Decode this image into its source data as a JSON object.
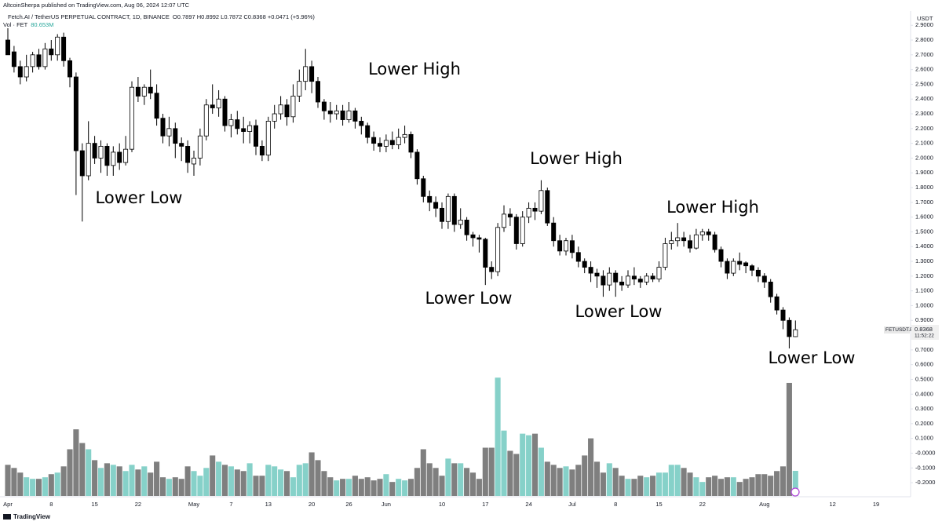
{
  "chart_data": {
    "type": "candlestick",
    "publisher_note": "AltcoinSherpa published on TradingView.com, Aug 06, 2024 12:07 UTC",
    "title": "Fetch.AI / TetherUS PERPETUAL CONTRACT, 1D, BINANCE",
    "ohlc_text": "O0.7897 H0.8992 L0.7872 C0.8368 +0.0471 (+5.96%)",
    "currency": "USDT",
    "symbol_tag": "FETUSDT.P",
    "countdown": "11:52:22",
    "footer_text": "TradingView",
    "annotations": [
      "Lower Low",
      "Lower High",
      "Lower Low",
      "Lower High",
      "Lower Low",
      "Lower High",
      "Lower Low"
    ],
    "categories": [
      "Apr",
      null,
      null,
      null,
      null,
      null,
      null,
      "8",
      null,
      null,
      null,
      null,
      null,
      null,
      "15",
      null,
      null,
      null,
      null,
      null,
      null,
      "22",
      null,
      null,
      null,
      null,
      null,
      null,
      null,
      null,
      "May",
      null,
      null,
      null,
      null,
      null,
      "7",
      null,
      null,
      null,
      null,
      null,
      "13",
      null,
      null,
      null,
      null,
      null,
      null,
      "20",
      null,
      null,
      null,
      null,
      null,
      "26",
      null,
      null,
      null,
      null,
      null,
      "Jun",
      null,
      null,
      null,
      null,
      null,
      null,
      null,
      null,
      "10",
      null,
      null,
      null,
      null,
      null,
      null,
      "17",
      null,
      null,
      null,
      null,
      null,
      null,
      "24",
      null,
      null,
      null,
      null,
      null,
      null,
      "Jul",
      null,
      null,
      null,
      null,
      null,
      null,
      "8",
      null,
      null,
      null,
      null,
      null,
      null,
      "15",
      null,
      null,
      null,
      null,
      null,
      null,
      "22",
      null,
      null,
      null,
      null,
      null,
      null,
      null,
      null,
      null,
      "Aug",
      null,
      null,
      null,
      null,
      null,
      null,
      null,
      null,
      null,
      null,
      "12",
      null,
      null,
      null,
      null,
      null,
      null,
      "19",
      null,
      null,
      null,
      null,
      null
    ],
    "open": [
      2.8,
      2.72,
      2.62,
      2.55,
      2.62,
      2.7,
      2.62,
      2.74,
      2.7,
      2.82,
      2.66,
      2.55,
      2.05,
      1.88,
      2.1,
      2.0,
      2.08,
      1.95,
      2.04,
      1.97,
      2.06,
      2.48,
      2.42,
      2.48,
      2.44,
      2.27,
      2.15,
      2.2,
      2.1,
      2.08,
      1.96,
      2.0,
      2.15,
      2.36,
      2.34,
      2.4,
      2.22,
      2.26,
      2.2,
      2.18,
      2.22,
      2.08,
      2.02,
      2.25,
      2.3,
      2.36,
      2.28,
      2.42,
      2.52,
      2.62,
      2.52,
      2.38,
      2.32,
      2.3,
      2.32,
      2.26,
      2.32,
      2.25,
      2.22,
      2.14,
      2.1,
      2.08,
      2.12,
      2.09,
      2.14,
      2.16,
      2.04,
      1.86,
      1.74,
      1.7,
      1.66,
      1.57,
      1.74,
      1.55,
      1.58,
      1.48,
      1.46,
      1.45,
      1.26,
      1.23,
      1.53,
      1.62,
      1.6,
      1.42,
      1.6,
      1.66,
      1.64,
      1.78,
      1.56,
      1.44,
      1.37,
      1.44,
      1.36,
      1.3,
      1.26,
      1.22,
      1.2,
      1.14,
      1.22,
      1.16,
      1.14,
      1.2,
      1.18,
      1.16,
      1.2,
      1.18,
      1.26,
      1.42,
      1.44,
      1.46,
      1.44,
      1.39,
      1.48,
      1.5,
      1.48,
      1.38,
      1.3,
      1.22,
      1.3,
      1.29,
      1.27,
      1.24,
      1.2,
      1.16,
      1.06,
      0.97,
      0.9,
      0.7897,
      null,
      null,
      null,
      null,
      null,
      null,
      null,
      null,
      null,
      null,
      null,
      null,
      null,
      null,
      null,
      null,
      null,
      null
    ],
    "high": [
      2.88,
      2.76,
      2.66,
      2.7,
      2.72,
      2.74,
      2.78,
      2.8,
      2.84,
      2.85,
      2.68,
      2.58,
      2.1,
      2.25,
      2.15,
      2.12,
      2.1,
      2.08,
      2.1,
      2.15,
      2.52,
      2.55,
      2.5,
      2.6,
      2.5,
      2.3,
      2.28,
      2.24,
      2.14,
      2.12,
      2.05,
      2.2,
      2.4,
      2.5,
      2.46,
      2.42,
      2.3,
      2.32,
      2.28,
      2.25,
      2.26,
      2.12,
      2.28,
      2.36,
      2.42,
      2.4,
      2.5,
      2.6,
      2.74,
      2.66,
      2.55,
      2.4,
      2.38,
      2.36,
      2.36,
      2.38,
      2.34,
      2.28,
      2.24,
      2.18,
      2.14,
      2.16,
      2.18,
      2.2,
      2.22,
      2.18,
      2.06,
      1.88,
      1.78,
      1.74,
      1.7,
      1.76,
      1.76,
      1.66,
      1.6,
      1.5,
      1.48,
      1.46,
      1.3,
      1.56,
      1.68,
      1.66,
      1.62,
      1.64,
      1.7,
      1.7,
      1.85,
      1.8,
      1.6,
      1.48,
      1.46,
      1.48,
      1.4,
      1.32,
      1.3,
      1.25,
      1.24,
      1.26,
      1.24,
      1.2,
      1.24,
      1.26,
      1.2,
      1.22,
      1.22,
      1.3,
      1.46,
      1.5,
      1.56,
      1.5,
      1.48,
      1.52,
      1.52,
      1.52,
      1.5,
      1.4,
      1.32,
      1.32,
      1.36,
      1.3,
      1.28,
      1.26,
      1.22,
      1.18,
      1.08,
      0.99,
      0.92,
      0.8992,
      null,
      null,
      null,
      null,
      null,
      null,
      null,
      null,
      null,
      null,
      null,
      null,
      null,
      null,
      null,
      null,
      null,
      null
    ],
    "low": [
      2.7,
      2.58,
      2.5,
      2.52,
      2.58,
      2.6,
      2.6,
      2.66,
      2.66,
      2.62,
      2.48,
      1.75,
      1.57,
      1.85,
      1.96,
      1.9,
      1.88,
      1.88,
      1.92,
      1.95,
      2.04,
      2.38,
      2.36,
      2.4,
      2.22,
      2.1,
      2.08,
      2.0,
      1.98,
      1.9,
      1.88,
      1.95,
      2.12,
      2.3,
      2.28,
      2.18,
      2.14,
      2.16,
      2.1,
      2.1,
      2.02,
      1.98,
      1.98,
      2.2,
      2.26,
      2.22,
      2.24,
      2.38,
      2.46,
      2.44,
      2.34,
      2.26,
      2.24,
      2.26,
      2.22,
      2.24,
      2.2,
      2.16,
      2.1,
      2.05,
      2.04,
      2.04,
      2.06,
      2.06,
      2.1,
      2.0,
      1.82,
      1.7,
      1.64,
      1.6,
      1.52,
      1.52,
      1.5,
      1.52,
      1.44,
      1.4,
      1.36,
      1.14,
      1.18,
      1.2,
      1.5,
      1.54,
      1.38,
      1.4,
      1.56,
      1.58,
      1.62,
      1.54,
      1.4,
      1.34,
      1.34,
      1.32,
      1.26,
      1.22,
      1.16,
      1.12,
      1.06,
      1.1,
      1.06,
      1.1,
      1.12,
      1.14,
      1.12,
      1.14,
      1.16,
      1.16,
      1.24,
      1.38,
      1.4,
      1.4,
      1.36,
      1.38,
      1.44,
      1.44,
      1.36,
      1.26,
      1.18,
      1.2,
      1.24,
      1.22,
      1.2,
      1.16,
      1.12,
      1.02,
      0.94,
      0.84,
      0.71,
      0.7872,
      null,
      null,
      null,
      null,
      null,
      null,
      null,
      null,
      null,
      null,
      null,
      null,
      null,
      null,
      null,
      null,
      null,
      null
    ],
    "close": [
      2.7,
      2.62,
      2.55,
      2.62,
      2.7,
      2.62,
      2.74,
      2.7,
      2.82,
      2.66,
      2.55,
      2.05,
      1.88,
      2.1,
      2.0,
      2.08,
      1.95,
      2.04,
      1.97,
      2.06,
      2.48,
      2.42,
      2.48,
      2.44,
      2.27,
      2.15,
      2.2,
      2.1,
      2.08,
      1.97,
      2.0,
      2.15,
      2.36,
      2.34,
      2.4,
      2.22,
      2.26,
      2.2,
      2.18,
      2.22,
      2.08,
      2.02,
      2.25,
      2.3,
      2.36,
      2.28,
      2.42,
      2.52,
      2.62,
      2.52,
      2.38,
      2.32,
      2.3,
      2.32,
      2.26,
      2.32,
      2.25,
      2.22,
      2.14,
      2.1,
      2.08,
      2.12,
      2.09,
      2.14,
      2.16,
      2.04,
      1.86,
      1.74,
      1.7,
      1.66,
      1.57,
      1.74,
      1.55,
      1.58,
      1.48,
      1.46,
      1.45,
      1.26,
      1.23,
      1.53,
      1.62,
      1.6,
      1.42,
      1.6,
      1.66,
      1.64,
      1.78,
      1.56,
      1.44,
      1.37,
      1.44,
      1.36,
      1.3,
      1.26,
      1.22,
      1.2,
      1.14,
      1.22,
      1.16,
      1.14,
      1.2,
      1.18,
      1.16,
      1.2,
      1.18,
      1.26,
      1.42,
      1.44,
      1.46,
      1.44,
      1.39,
      1.48,
      1.5,
      1.48,
      1.38,
      1.3,
      1.22,
      1.3,
      1.28,
      1.27,
      1.24,
      1.2,
      1.16,
      1.06,
      0.97,
      0.9,
      0.79,
      0.8368,
      null,
      null,
      null,
      null,
      null,
      null,
      null,
      null,
      null,
      null,
      null,
      null,
      null,
      null,
      null,
      null,
      null,
      null
    ],
    "volume": {
      "name": "Vol · FET",
      "last_label": "80.653M",
      "values": [
        100,
        90,
        75,
        60,
        55,
        55,
        60,
        70,
        75,
        95,
        150,
        214,
        170,
        150,
        115,
        90,
        105,
        100,
        95,
        80,
        100,
        85,
        95,
        75,
        110,
        60,
        55,
        60,
        55,
        95,
        80,
        65,
        90,
        130,
        110,
        100,
        95,
        85,
        80,
        105,
        65,
        65,
        100,
        95,
        85,
        80,
        60,
        100,
        105,
        140,
        115,
        80,
        60,
        50,
        55,
        55,
        65,
        55,
        60,
        50,
        55,
        70,
        45,
        55,
        50,
        55,
        90,
        150,
        105,
        90,
        65,
        120,
        105,
        105,
        90,
        75,
        55,
        155,
        155,
        380,
        210,
        145,
        135,
        200,
        195,
        200,
        155,
        110,
        100,
        90,
        95,
        85,
        100,
        130,
        185,
        110,
        75,
        105,
        90,
        65,
        55,
        55,
        65,
        60,
        65,
        75,
        75,
        100,
        100,
        90,
        75,
        60,
        45,
        60,
        65,
        55,
        60,
        60,
        45,
        55,
        60,
        70,
        70,
        65,
        80,
        95,
        363,
        80.653,
        null,
        null,
        null,
        null,
        null,
        null,
        null,
        null,
        null,
        null,
        null,
        null,
        null,
        null,
        null,
        null,
        null,
        null
      ]
    },
    "colors": {
      "up": "#ffffff",
      "down": "#000000",
      "outline": "#000000",
      "volume_up": "#86d1c9",
      "volume_down": "#7f7f7f"
    },
    "ylim": [
      -0.29,
      2.965
    ],
    "yticks": [
      {
        "value": 2.9,
        "label": "2.9000"
      },
      {
        "value": 2.8,
        "label": "2.8000"
      },
      {
        "value": 2.7,
        "label": "2.7000"
      },
      {
        "value": 2.6,
        "label": "2.6000"
      },
      {
        "value": 2.5,
        "label": "2.5000"
      },
      {
        "value": 2.4,
        "label": "2.4000"
      },
      {
        "value": 2.3,
        "label": "2.3000"
      },
      {
        "value": 2.2,
        "label": "2.2000"
      },
      {
        "value": 2.1,
        "label": "2.1000"
      },
      {
        "value": 2.0,
        "label": "2.0000"
      },
      {
        "value": 1.9,
        "label": "1.9000"
      },
      {
        "value": 1.8,
        "label": "1.8000"
      },
      {
        "value": 1.7,
        "label": "1.7000"
      },
      {
        "value": 1.6,
        "label": "1.6000"
      },
      {
        "value": 1.5,
        "label": "1.5000"
      },
      {
        "value": 1.4,
        "label": "1.4000"
      },
      {
        "value": 1.3,
        "label": "1.3000"
      },
      {
        "value": 1.2,
        "label": "1.2000"
      },
      {
        "value": 1.1,
        "label": "1.1000"
      },
      {
        "value": 1.0,
        "label": "1.0000"
      },
      {
        "value": 0.9,
        "label": "0.9000"
      },
      {
        "value": 0.7,
        "label": "0.7000"
      },
      {
        "value": 0.6,
        "label": "0.6000"
      },
      {
        "value": 0.5,
        "label": "0.5000"
      },
      {
        "value": 0.4,
        "label": "0.4000"
      },
      {
        "value": 0.3,
        "label": "0.3000"
      },
      {
        "value": 0.2,
        "label": "0.2000"
      },
      {
        "value": 0.1,
        "label": "0.1000"
      },
      {
        "value": 0,
        "label": "-0.0000"
      },
      {
        "value": -0.1,
        "label": "-0.1000"
      },
      {
        "value": -0.2,
        "label": "-0.2000"
      }
    ],
    "grid": false
  }
}
